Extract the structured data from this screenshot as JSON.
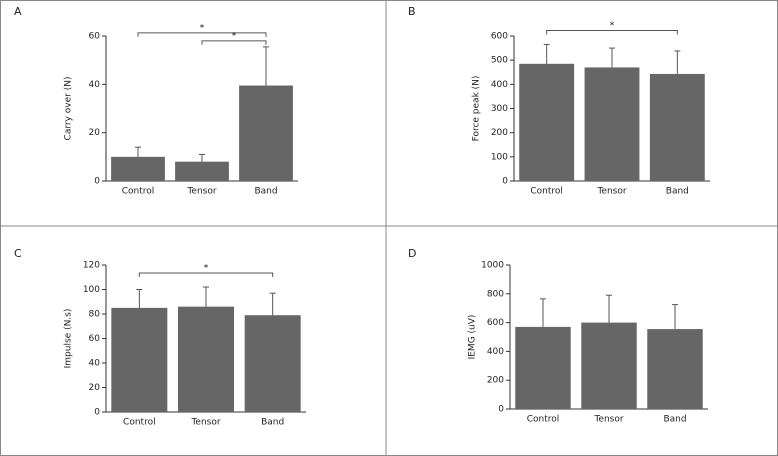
{
  "chart_data": [
    {
      "type": "bar",
      "panel": "A",
      "ylabel": "Carry over (N)",
      "categories": [
        "Control",
        "Tensor",
        "Band"
      ],
      "values": [
        10,
        8,
        39.5
      ],
      "errors": [
        4,
        3,
        16
      ],
      "color": "#666666",
      "ylim": [
        0,
        60
      ],
      "yticks": [
        0,
        20,
        40,
        60
      ],
      "significance": [
        {
          "label": "*",
          "span": [
            0,
            2
          ]
        },
        {
          "label": "*",
          "span": [
            1,
            2
          ]
        }
      ]
    },
    {
      "type": "bar",
      "panel": "B",
      "ylabel": "Force peak (N)",
      "categories": [
        "Control",
        "Tensor",
        "Band"
      ],
      "values": [
        485,
        470,
        443
      ],
      "errors": [
        80,
        80,
        95
      ],
      "color": "#666666",
      "ylim": [
        0,
        600
      ],
      "yticks": [
        0,
        100,
        200,
        300,
        400,
        500,
        600
      ],
      "significance": [
        {
          "label": "*",
          "span": [
            0,
            2
          ]
        }
      ]
    },
    {
      "type": "bar",
      "panel": "C",
      "ylabel": "Impulse (N.s)",
      "categories": [
        "Control",
        "Tensor",
        "Band"
      ],
      "values": [
        85,
        86,
        79
      ],
      "errors": [
        15,
        16,
        18
      ],
      "color": "#666666",
      "ylim": [
        0,
        120
      ],
      "yticks": [
        0,
        20,
        40,
        60,
        80,
        100,
        120
      ],
      "significance": [
        {
          "label": "*",
          "span": [
            0,
            2
          ]
        }
      ]
    },
    {
      "type": "bar",
      "panel": "D",
      "ylabel": "IEMG (uV)",
      "categories": [
        "Control",
        "Tensor",
        "Band"
      ],
      "values": [
        570,
        600,
        555
      ],
      "errors": [
        195,
        190,
        170
      ],
      "color": "#666666",
      "ylim": [
        0,
        1000
      ],
      "yticks": [
        0,
        200,
        400,
        600,
        800,
        1000
      ]
    }
  ]
}
